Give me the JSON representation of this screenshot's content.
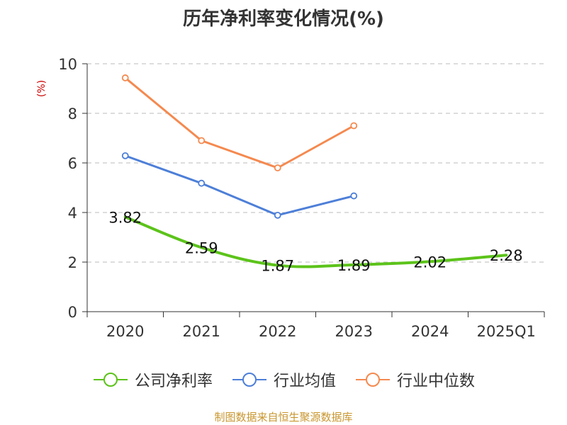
{
  "chart_data": {
    "type": "line",
    "title": "历年净利率变化情况(%)",
    "ylabel": "(%)",
    "categories": [
      "2020",
      "2021",
      "2022",
      "2023",
      "2024",
      "2025Q1"
    ],
    "ylim": [
      0,
      10
    ],
    "yticks": [
      "0",
      "2",
      "4",
      "6",
      "8",
      "10"
    ],
    "grid": true,
    "legend_position": "bottom",
    "series": [
      {
        "name": "公司净利率",
        "color": "#5cc31a",
        "values": [
          3.82,
          2.59,
          1.87,
          1.89,
          2.02,
          2.28
        ],
        "labels": [
          "3.82",
          "2.59",
          "1.87",
          "1.89",
          "2.02",
          "2.28"
        ],
        "markers": false
      },
      {
        "name": "行业均值",
        "color": "#4d7fd8",
        "values": [
          6.29,
          5.18,
          3.89,
          4.67,
          null,
          null
        ],
        "markers": true
      },
      {
        "name": "行业中位数",
        "color": "#f5894f",
        "values": [
          9.43,
          6.9,
          5.8,
          7.5,
          null,
          null
        ],
        "markers": true
      }
    ]
  },
  "source": "制图数据来自恒生聚源数据库"
}
